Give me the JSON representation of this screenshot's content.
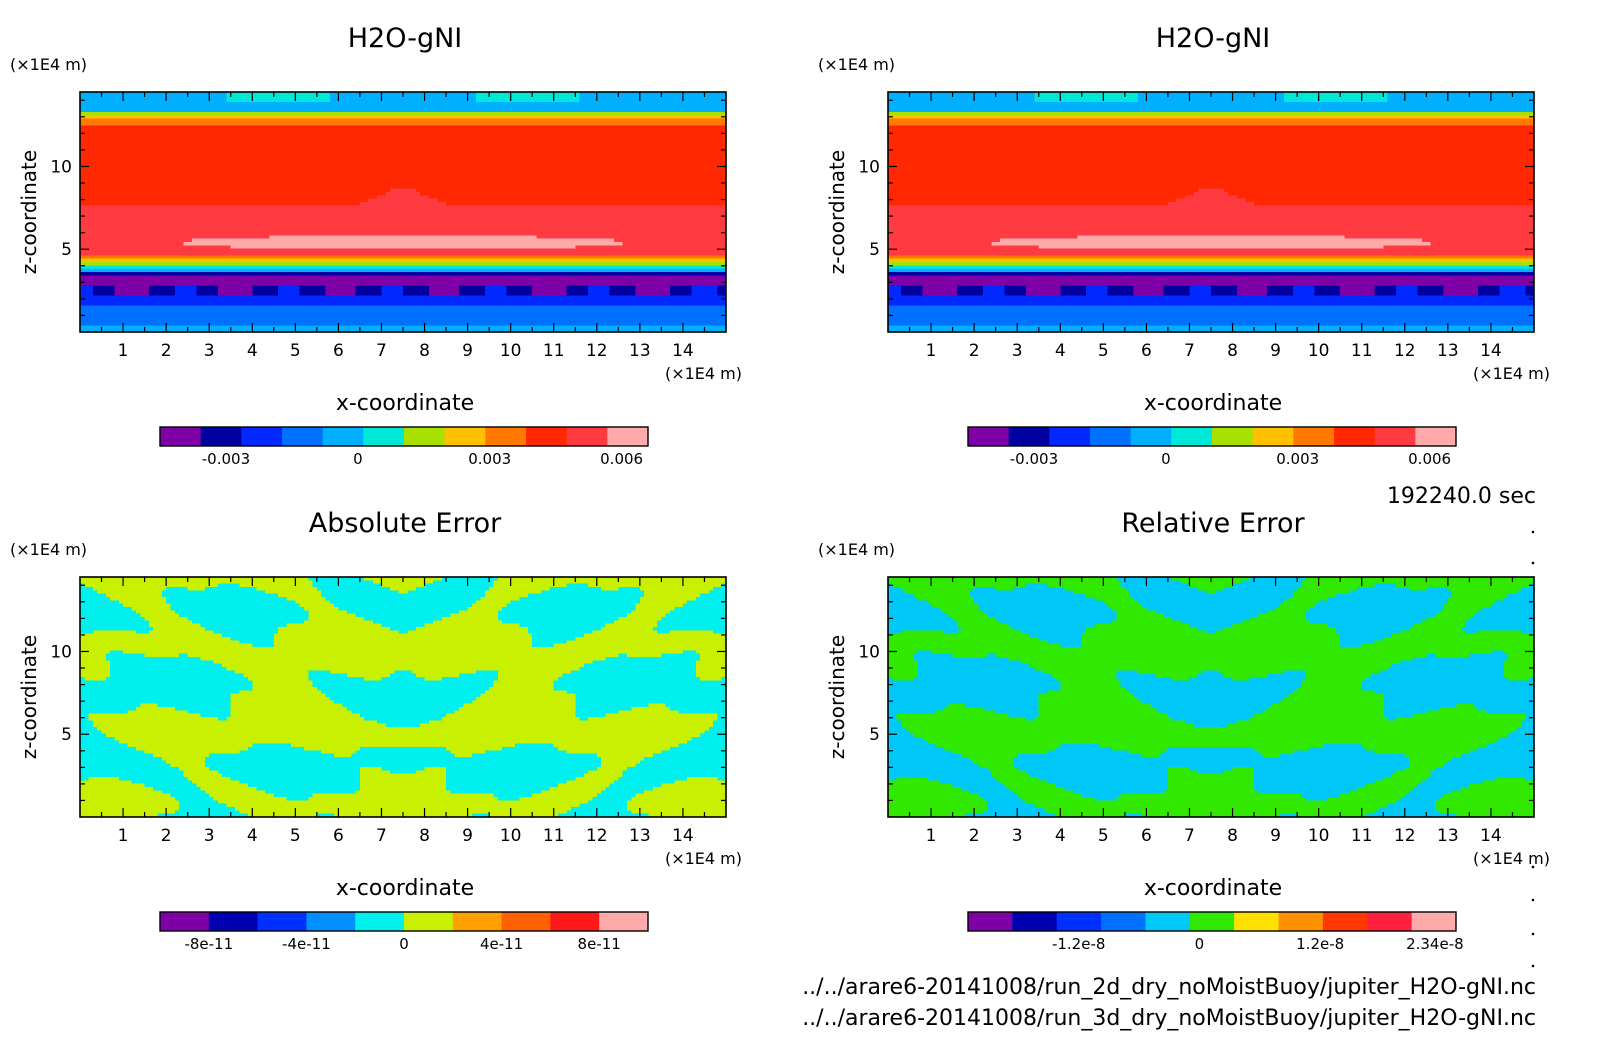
{
  "time_label": "192240.0 sec",
  "file_paths": [
    "../../arare6-20141008/run_2d_dry_noMoistBuoy/jupiter_H2O-gNI.nc",
    "../../arare6-20141008/run_3d_dry_noMoistBuoy/jupiter_H2O-gNI.nc"
  ],
  "chart_data": [
    {
      "type": "heatmap",
      "title": "H2O-gNI",
      "xlabel": "x-coordinate",
      "ylabel": "z-coordinate",
      "x_unit": "(×1E4 m)",
      "y_unit": "(×1E4 m)",
      "xlim": [
        0,
        15
      ],
      "ylim": [
        0,
        14.5
      ],
      "x_ticks": [
        1,
        2,
        3,
        4,
        5,
        6,
        7,
        8,
        9,
        10,
        11,
        12,
        13,
        14
      ],
      "y_ticks": [
        5,
        10
      ],
      "field": "h2o",
      "colorbar": {
        "colors": [
          "#8000a8",
          "#0000a0",
          "#0028ff",
          "#0070ff",
          "#00b0ff",
          "#00e8d8",
          "#a8e000",
          "#ffc000",
          "#ff7800",
          "#ff2800",
          "#ff3a40",
          "#ffaaaa"
        ],
        "tick_labels": [
          "-0.003",
          "0",
          "0.003",
          "0.006"
        ],
        "tick_values": [
          -0.003,
          0,
          0.003,
          0.006
        ],
        "range": [
          -0.0045,
          0.0066
        ]
      }
    },
    {
      "type": "heatmap",
      "title": "H2O-gNI",
      "xlabel": "x-coordinate",
      "ylabel": "z-coordinate",
      "x_unit": "(×1E4 m)",
      "y_unit": "(×1E4 m)",
      "xlim": [
        0,
        15
      ],
      "ylim": [
        0,
        14.5
      ],
      "x_ticks": [
        1,
        2,
        3,
        4,
        5,
        6,
        7,
        8,
        9,
        10,
        11,
        12,
        13,
        14
      ],
      "y_ticks": [
        5,
        10
      ],
      "field": "h2o",
      "colorbar": {
        "colors": [
          "#8000a8",
          "#0000a0",
          "#0028ff",
          "#0070ff",
          "#00b0ff",
          "#00e8d8",
          "#a8e000",
          "#ffc000",
          "#ff7800",
          "#ff2800",
          "#ff3a40",
          "#ffaaaa"
        ],
        "tick_labels": [
          "-0.003",
          "0",
          "0.003",
          "0.006"
        ],
        "tick_values": [
          -0.003,
          0,
          0.003,
          0.006
        ],
        "range": [
          -0.0045,
          0.0066
        ]
      }
    },
    {
      "type": "heatmap",
      "title": "Absolute Error",
      "xlabel": "x-coordinate",
      "ylabel": "z-coordinate",
      "x_unit": "(×1E4 m)",
      "y_unit": "(×1E4 m)",
      "xlim": [
        0,
        15
      ],
      "ylim": [
        0,
        14.5
      ],
      "x_ticks": [
        1,
        2,
        3,
        4,
        5,
        6,
        7,
        8,
        9,
        10,
        11,
        12,
        13,
        14
      ],
      "y_ticks": [
        5,
        10
      ],
      "field": "abs",
      "fill_colors": [
        "#00f0f0",
        "#c8f000"
      ],
      "colorbar": {
        "colors": [
          "#8000a8",
          "#0000b0",
          "#0030ff",
          "#0090ff",
          "#00f0f0",
          "#c8f000",
          "#ffa000",
          "#ff6000",
          "#ff1818",
          "#ffaaaa"
        ],
        "tick_labels": [
          "-8e-11",
          "-4e-11",
          "0",
          "4e-11",
          "8e-11"
        ],
        "tick_values": [
          -8e-11,
          -4e-11,
          0,
          4e-11,
          8e-11
        ],
        "range": [
          -1e-10,
          1e-10
        ]
      }
    },
    {
      "type": "heatmap",
      "title": "Relative Error",
      "xlabel": "x-coordinate",
      "ylabel": "z-coordinate",
      "x_unit": "(×1E4 m)",
      "y_unit": "(×1E4 m)",
      "xlim": [
        0,
        15
      ],
      "ylim": [
        0,
        14.5
      ],
      "x_ticks": [
        1,
        2,
        3,
        4,
        5,
        6,
        7,
        8,
        9,
        10,
        11,
        12,
        13,
        14
      ],
      "y_ticks": [
        5,
        10
      ],
      "field": "abs",
      "fill_colors": [
        "#00c8f8",
        "#30e800"
      ],
      "colorbar": {
        "colors": [
          "#8000a8",
          "#0000b0",
          "#0030ff",
          "#0070ff",
          "#00c8f8",
          "#30e800",
          "#ffe000",
          "#ff9000",
          "#ff3800",
          "#ff2040",
          "#ffaaaa"
        ],
        "tick_labels": [
          "-1.2e-8",
          "0",
          "1.2e-8",
          "2.34e-8"
        ],
        "tick_values": [
          -1.2e-08,
          0,
          1.2e-08,
          2.34e-08
        ],
        "range": [
          -2.3e-08,
          2.55e-08
        ]
      }
    }
  ]
}
